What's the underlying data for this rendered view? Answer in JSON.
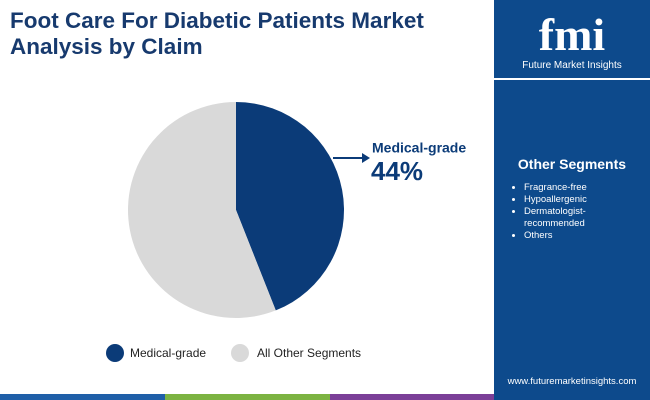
{
  "chart_data": {
    "type": "pie",
    "title": "Foot Care For Diabetic Patients Market Analysis by Claim",
    "categories": [
      "Medical-grade",
      "All Other Segments"
    ],
    "values": [
      44,
      56
    ],
    "value_labels": [
      "44%",
      null
    ],
    "colors": [
      "#0b3b78",
      "#d9d9d9"
    ],
    "legend": "bottom"
  },
  "brand": {
    "logo": "fmi",
    "name": "Future Market Insights"
  },
  "panel": {
    "title": "Other Segments",
    "items": [
      "Fragrance-free",
      "Hypoallergenic",
      "Dermatologist-recommended",
      "Others"
    ]
  },
  "footer": {
    "url": "www.futuremarketinsights.com"
  }
}
